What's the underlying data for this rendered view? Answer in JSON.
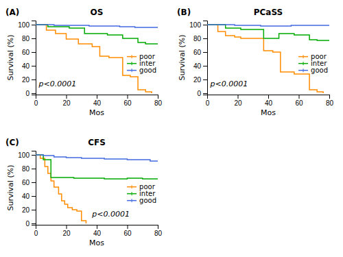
{
  "chart_data": [
    {
      "type": "step",
      "panel_label": "(A)",
      "title": "OS",
      "xlabel": "Mos",
      "ylabel": "Survival (%)",
      "xlim": [
        0,
        80
      ],
      "ylim": [
        -2,
        106
      ],
      "xticks": [
        0,
        20,
        40,
        60,
        80
      ],
      "yticks": [
        0,
        20,
        40,
        60,
        80,
        100
      ],
      "legend": "right",
      "annotations": [
        {
          "text": "p<0.0001",
          "x": 2,
          "y": 8
        }
      ],
      "series": [
        {
          "name": "poor",
          "color": "#FF8C00",
          "x": [
            0,
            7,
            7,
            13,
            13,
            20,
            20,
            28,
            28,
            37,
            37,
            42,
            42,
            48,
            48,
            57,
            57,
            62,
            62,
            67,
            67,
            72,
            72,
            76,
            76
          ],
          "values": [
            100,
            100,
            92,
            92,
            87,
            87,
            79,
            79,
            72,
            72,
            68,
            68,
            54,
            54,
            52,
            52,
            26,
            26,
            24,
            24,
            5,
            5,
            2,
            2,
            0
          ]
        },
        {
          "name": "inter",
          "color": "#00AA00",
          "x": [
            0,
            8,
            8,
            22,
            22,
            32,
            32,
            47,
            47,
            57,
            57,
            67,
            67,
            72,
            72,
            80
          ],
          "values": [
            100,
            100,
            97,
            97,
            95,
            95,
            87,
            87,
            85,
            85,
            80,
            80,
            74,
            74,
            72,
            72
          ]
        },
        {
          "name": "good",
          "color": "#4169E1",
          "x": [
            0,
            12,
            12,
            35,
            35,
            55,
            55,
            65,
            65,
            80
          ],
          "values": [
            100,
            100,
            99,
            99,
            98,
            98,
            97,
            97,
            96,
            96
          ]
        }
      ]
    },
    {
      "type": "step",
      "panel_label": "(B)",
      "title": "PCaSS",
      "xlabel": "Mos",
      "ylabel": "Survival (%)",
      "xlim": [
        0,
        80
      ],
      "ylim": [
        -2,
        106
      ],
      "xticks": [
        0,
        20,
        40,
        60,
        80
      ],
      "yticks": [
        0,
        20,
        40,
        60,
        80,
        100
      ],
      "legend": "right",
      "annotations": [
        {
          "text": "p<0.0001",
          "x": 2,
          "y": 8
        }
      ],
      "series": [
        {
          "name": "poor",
          "color": "#FF8C00",
          "x": [
            0,
            7,
            7,
            12,
            12,
            18,
            18,
            22,
            22,
            37,
            37,
            43,
            43,
            48,
            48,
            57,
            57,
            67,
            67,
            72,
            72,
            76,
            76
          ],
          "values": [
            100,
            100,
            90,
            90,
            84,
            84,
            82,
            82,
            80,
            80,
            62,
            62,
            60,
            60,
            31,
            31,
            28,
            28,
            5,
            5,
            2,
            2,
            0
          ]
        },
        {
          "name": "inter",
          "color": "#00AA00",
          "x": [
            0,
            12,
            12,
            22,
            22,
            37,
            37,
            47,
            47,
            57,
            57,
            67,
            67,
            72,
            72,
            80
          ],
          "values": [
            100,
            100,
            95,
            95,
            93,
            93,
            80,
            80,
            87,
            87,
            85,
            85,
            78,
            78,
            77,
            77
          ]
        },
        {
          "name": "good",
          "color": "#4169E1",
          "x": [
            0,
            18,
            18,
            35,
            35,
            55,
            55,
            80
          ],
          "values": [
            100,
            100,
            99,
            99,
            98,
            98,
            99,
            99
          ]
        }
      ]
    },
    {
      "type": "step",
      "panel_label": "(C)",
      "title": "CFS",
      "xlabel": "Mos",
      "ylabel": "Survival (%)",
      "xlim": [
        0,
        80
      ],
      "ylim": [
        -2,
        106
      ],
      "xticks": [
        0,
        20,
        40,
        60,
        80
      ],
      "yticks": [
        0,
        20,
        40,
        60,
        80,
        100
      ],
      "legend": "right",
      "annotations": [
        {
          "text": "p<0.0001",
          "x": 37,
          "y": 8
        }
      ],
      "series": [
        {
          "name": "poor",
          "color": "#FF8C00",
          "x": [
            0,
            3,
            3,
            6,
            6,
            8,
            8,
            10,
            10,
            12,
            12,
            15,
            15,
            17,
            17,
            19,
            19,
            21,
            21,
            24,
            24,
            27,
            27,
            30,
            30,
            33,
            33
          ],
          "values": [
            100,
            100,
            95,
            95,
            83,
            83,
            73,
            73,
            62,
            62,
            53,
            53,
            43,
            43,
            33,
            33,
            28,
            28,
            23,
            23,
            20,
            20,
            18,
            18,
            4,
            4,
            0
          ]
        },
        {
          "name": "inter",
          "color": "#00AA00",
          "x": [
            0,
            5,
            5,
            10,
            10,
            25,
            25,
            45,
            45,
            60,
            60,
            70,
            70,
            80
          ],
          "values": [
            100,
            100,
            93,
            93,
            67,
            67,
            66,
            66,
            65,
            65,
            66,
            66,
            65,
            65
          ]
        },
        {
          "name": "good",
          "color": "#4169E1",
          "x": [
            0,
            5,
            5,
            12,
            12,
            20,
            20,
            30,
            30,
            45,
            45,
            60,
            60,
            75,
            75,
            80
          ],
          "values": [
            100,
            100,
            99,
            99,
            97,
            97,
            96,
            96,
            95,
            95,
            94,
            94,
            93,
            93,
            91,
            91
          ]
        }
      ]
    }
  ]
}
